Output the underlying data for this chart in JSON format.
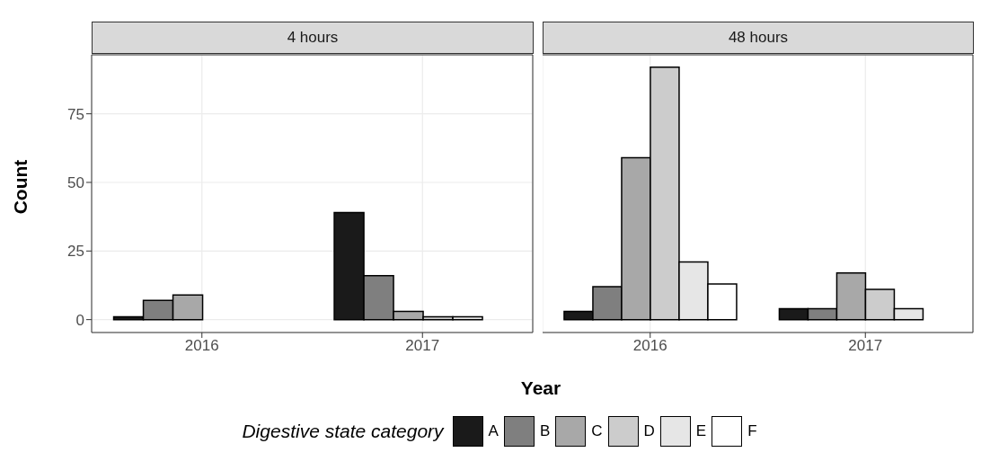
{
  "chart_data": [
    {
      "type": "bar",
      "title": "4 hours",
      "xlabel": "Year",
      "ylabel": "Count",
      "legend_title": "Digestive state category",
      "legend": "bottom",
      "grid": true,
      "categories": [
        "2016",
        "2017"
      ],
      "ylim": [
        -4.7,
        96.5
      ],
      "yticks": [
        0,
        25,
        50,
        75
      ],
      "series": [
        {
          "name": "A",
          "color": "#1a1a1a",
          "values": [
            1,
            39
          ]
        },
        {
          "name": "B",
          "color": "#7f7f7f",
          "values": [
            7,
            16
          ]
        },
        {
          "name": "C",
          "color": "#a8a8a8",
          "values": [
            9,
            3
          ]
        },
        {
          "name": "D",
          "color": "#cccccc",
          "values": [
            null,
            1
          ]
        },
        {
          "name": "E",
          "color": "#e6e6e6",
          "values": [
            null,
            1
          ]
        },
        {
          "name": "F",
          "color": "#ffffff",
          "values": [
            null,
            null
          ]
        }
      ]
    },
    {
      "type": "bar",
      "title": "48 hours",
      "grid": true,
      "tick_labels": "x",
      "categories": [
        "2016",
        "2017"
      ],
      "ylim": [
        -4.7,
        96.5
      ],
      "yticks": [
        0,
        25,
        50,
        75
      ],
      "series": [
        {
          "color": "#1a1a1a",
          "values": [
            3,
            4
          ]
        },
        {
          "color": "#7f7f7f",
          "values": [
            12,
            4
          ]
        },
        {
          "color": "#a8a8a8",
          "values": [
            59,
            17
          ]
        },
        {
          "color": "#cccccc",
          "values": [
            92,
            11
          ]
        },
        {
          "color": "#e6e6e6",
          "values": [
            21,
            4
          ]
        },
        {
          "color": "#ffffff",
          "values": [
            13,
            null
          ]
        }
      ]
    }
  ]
}
